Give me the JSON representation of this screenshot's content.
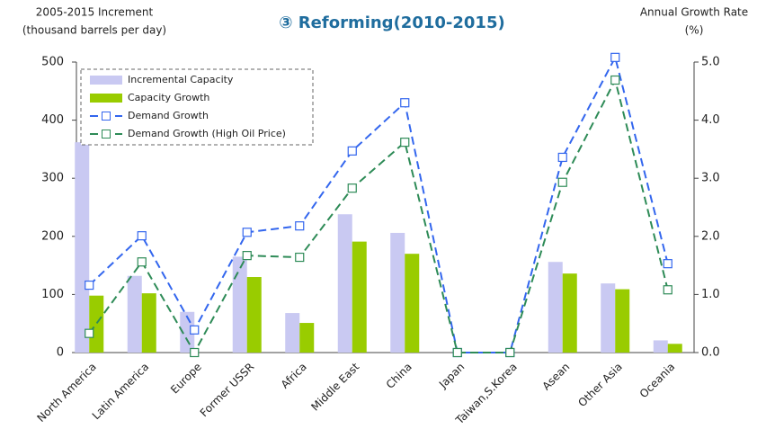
{
  "chart_data": {
    "type": "bar_line",
    "title": "③ Reforming(2010-2015)",
    "y_label_lines": [
      "2005-2015 Increment",
      "(thousand barrels per day)"
    ],
    "y2_label_lines": [
      "Annual Growth Rate",
      "(%)"
    ],
    "categories": [
      "North America",
      "Latin America",
      "Europe",
      "Former USSR",
      "Africa",
      "Middle East",
      "China",
      "Japan",
      "Taiwan,S.Korea",
      "Asean",
      "Other Asia",
      "Oceania"
    ],
    "series": [
      {
        "name": "Incremental Capacity",
        "kind": "bar",
        "color": "#c9c9f2",
        "values": [
          362,
          132,
          70,
          165,
          68,
          238,
          206,
          0,
          0,
          156,
          119,
          21
        ]
      },
      {
        "name": "Capacity Growth",
        "kind": "bar",
        "color": "#99cc00",
        "values": [
          98,
          102,
          0,
          130,
          51,
          191,
          170,
          0,
          0,
          136,
          109,
          15
        ]
      },
      {
        "name": "Demand Growth",
        "kind": "line",
        "axis": "y2",
        "color": "#3366ee",
        "values": [
          1.16,
          2.01,
          0.39,
          2.07,
          2.18,
          3.47,
          4.3,
          0,
          0,
          3.36,
          5.08,
          1.53
        ]
      },
      {
        "name": "Demand Growth (High Oil Price)",
        "kind": "line",
        "axis": "y2",
        "color": "#2e8b57",
        "values": [
          0.33,
          1.56,
          0,
          1.67,
          1.64,
          2.83,
          3.62,
          0,
          0,
          2.93,
          4.69,
          1.08
        ]
      }
    ],
    "ylim": [
      0,
      500
    ],
    "yticks": [
      0,
      100,
      200,
      300,
      400,
      500
    ],
    "y2lim": [
      0,
      5
    ],
    "y2ticks": [
      {
        "value": 0,
        "label": "0.0"
      },
      {
        "value": 1,
        "label": "1.0"
      },
      {
        "value": 2,
        "label": "2.0"
      },
      {
        "value": 3,
        "label": "3.0"
      },
      {
        "value": 4,
        "label": "4.0"
      },
      {
        "value": 5,
        "label": "5.0"
      }
    ],
    "legend": "upper left"
  }
}
